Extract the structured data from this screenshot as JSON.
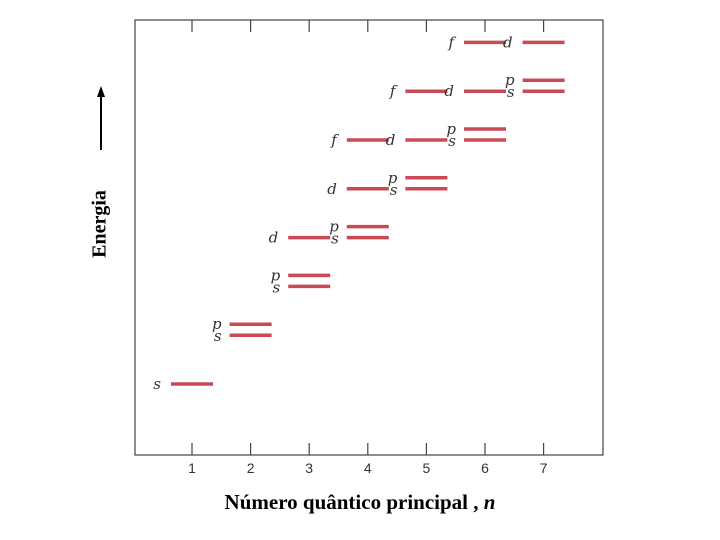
{
  "title": "",
  "y_label": "Energia",
  "x_label": "Número quântico principal",
  "x_label_sep": " , ",
  "x_label_var": "n",
  "x_ticks": [
    "1",
    "2",
    "3",
    "4",
    "5",
    "6",
    "7"
  ],
  "colors": {
    "level": "#c84a55",
    "axis": "#444444",
    "label": "#333333",
    "arrow": "#000000"
  },
  "levels": [
    {
      "n": 1,
      "sublevel": "s",
      "rank": 1
    },
    {
      "n": 2,
      "sublevel": "s",
      "rank": 2
    },
    {
      "n": 2,
      "sublevel": "p",
      "rank": 2
    },
    {
      "n": 3,
      "sublevel": "s",
      "rank": 3
    },
    {
      "n": 3,
      "sublevel": "p",
      "rank": 3
    },
    {
      "n": 3,
      "sublevel": "d",
      "rank": 4
    },
    {
      "n": 4,
      "sublevel": "s",
      "rank": 4
    },
    {
      "n": 4,
      "sublevel": "p",
      "rank": 4
    },
    {
      "n": 4,
      "sublevel": "d",
      "rank": 5
    },
    {
      "n": 5,
      "sublevel": "s",
      "rank": 5
    },
    {
      "n": 5,
      "sublevel": "p",
      "rank": 5
    },
    {
      "n": 4,
      "sublevel": "f",
      "rank": 6
    },
    {
      "n": 5,
      "sublevel": "d",
      "rank": 6
    },
    {
      "n": 6,
      "sublevel": "s",
      "rank": 6
    },
    {
      "n": 6,
      "sublevel": "p",
      "rank": 6
    },
    {
      "n": 5,
      "sublevel": "f",
      "rank": 7
    },
    {
      "n": 6,
      "sublevel": "d",
      "rank": 7
    },
    {
      "n": 7,
      "sublevel": "s",
      "rank": 7
    },
    {
      "n": 7,
      "sublevel": "p",
      "rank": 7
    },
    {
      "n": 6,
      "sublevel": "f",
      "rank": 8
    },
    {
      "n": 7,
      "sublevel": "d",
      "rank": 8
    }
  ]
}
